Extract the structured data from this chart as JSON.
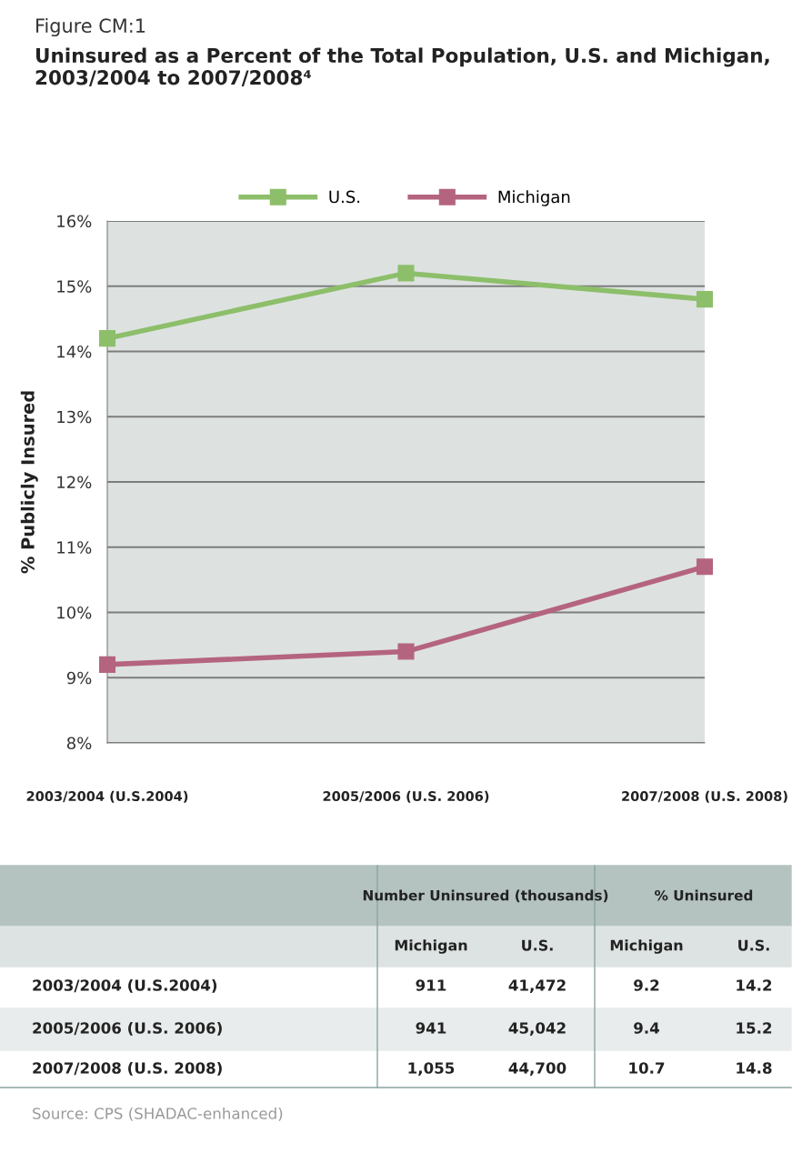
{
  "chart_data": {
    "type": "line",
    "title": "Uninsured as a Percent of the Total Population, U.S. and Michigan, 2003/2004 to 2007/2008⁴",
    "ylabel": "% Publicly Insured",
    "categories": [
      "2003/2004 (U.S.2004)",
      "2005/2006 (U.S. 2006)",
      "2007/2008 (U.S. 2008)"
    ],
    "series": [
      {
        "name": "U.S.",
        "color": "#8dbf6a",
        "values": [
          14.2,
          15.2,
          14.8
        ]
      },
      {
        "name": "Michigan",
        "color": "#b5647f",
        "values": [
          9.2,
          9.4,
          10.7
        ]
      }
    ],
    "ylim": [
      8,
      16
    ],
    "yticks": [
      {
        "value": 8,
        "label": "8%"
      },
      {
        "value": 9,
        "label": "9%"
      },
      {
        "value": 10,
        "label": "10%"
      },
      {
        "value": 11,
        "label": "11%"
      },
      {
        "value": 12,
        "label": "12%"
      },
      {
        "value": 13,
        "label": "13%"
      },
      {
        "value": 14,
        "label": "14%"
      },
      {
        "value": 15,
        "label": "15%"
      },
      {
        "value": 16,
        "label": "16%"
      }
    ],
    "grid": "y",
    "legend": "top",
    "marker": "square",
    "line_style": "solid",
    "annotations": [
      "Figure CM:1",
      "Number Uninsured (thousands)",
      "% Uninsured",
      "911",
      "41,472",
      "941",
      "45,042",
      "1,055",
      "44,700",
      "Source: CPS (SHADAC-enhanced)",
      "9.2",
      "14.2",
      "9.4",
      "15.2",
      "10.7",
      "14.8"
    ]
  }
}
